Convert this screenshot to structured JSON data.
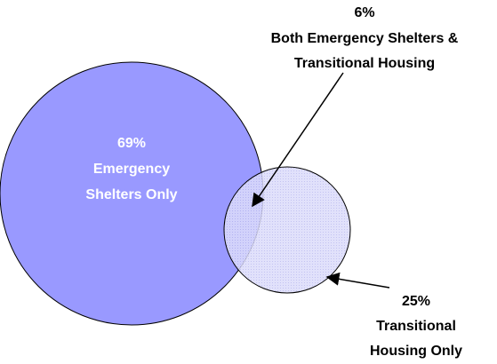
{
  "regions": [
    {
      "percent": "69%",
      "lines": [
        "Emergency",
        "Shelters Only"
      ]
    },
    {
      "percent": "6%",
      "lines": [
        "Both Emergency Shelters &",
        "Transitional Housing"
      ]
    },
    {
      "percent": "25%",
      "lines": [
        "Transitional",
        "Housing Only"
      ]
    }
  ]
}
